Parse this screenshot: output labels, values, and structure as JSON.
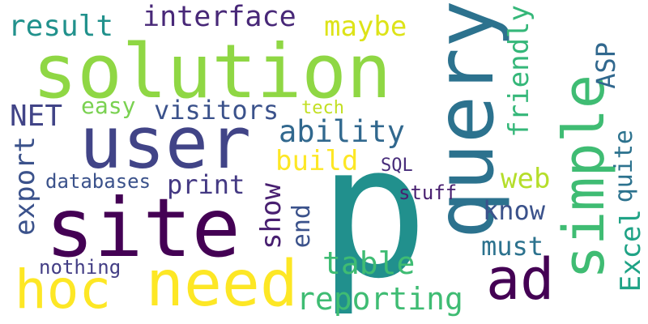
{
  "words": [
    {
      "text": "p",
      "color": "#21908d"
    },
    {
      "text": "query",
      "color": "#2c728e"
    },
    {
      "text": "solution",
      "color": "#8fd744"
    },
    {
      "text": "user",
      "color": "#414487"
    },
    {
      "text": "site",
      "color": "#440154"
    },
    {
      "text": "simple",
      "color": "#3fbc73"
    },
    {
      "text": "need",
      "color": "#fde725"
    },
    {
      "text": "hoc",
      "color": "#fde725"
    },
    {
      "text": "ad",
      "color": "#440154"
    },
    {
      "text": "interface",
      "color": "#482878"
    },
    {
      "text": "result",
      "color": "#21918c"
    },
    {
      "text": "maybe",
      "color": "#dde318"
    },
    {
      "text": "friendly",
      "color": "#35b779"
    },
    {
      "text": "ASP",
      "color": "#31688e"
    },
    {
      "text": "ability",
      "color": "#31688e"
    },
    {
      "text": "build",
      "color": "#fde725"
    },
    {
      "text": "web",
      "color": "#b5de2b"
    },
    {
      "text": "quite",
      "color": "#2c728e"
    },
    {
      "text": "export",
      "color": "#3b528b"
    },
    {
      "text": "NET",
      "color": "#414487"
    },
    {
      "text": "easy",
      "color": "#7ad151"
    },
    {
      "text": "visitors",
      "color": "#3b528b"
    },
    {
      "text": "tech",
      "color": "#c2df23"
    },
    {
      "text": "SQL",
      "color": "#472c7a"
    },
    {
      "text": "databases",
      "color": "#3b528b"
    },
    {
      "text": "print",
      "color": "#443983"
    },
    {
      "text": "show",
      "color": "#481f70"
    },
    {
      "text": "end",
      "color": "#3b528b"
    },
    {
      "text": "stuff",
      "color": "#481f70"
    },
    {
      "text": "know",
      "color": "#3b528b"
    },
    {
      "text": "Excel",
      "color": "#20a386"
    },
    {
      "text": "must",
      "color": "#2c728e"
    },
    {
      "text": "table",
      "color": "#3fbc73"
    },
    {
      "text": "reporting",
      "color": "#3fbc73"
    },
    {
      "text": "nothing",
      "color": "#433e85"
    }
  ]
}
